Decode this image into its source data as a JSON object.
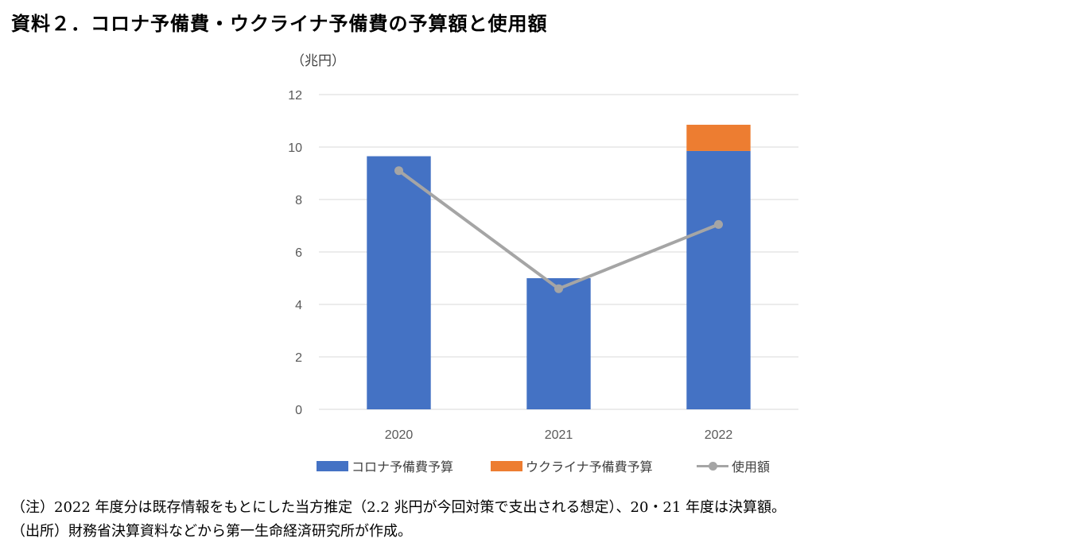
{
  "title": "資料２．コロナ予備費・ウクライナ予備費の予算額と使用額",
  "unit_label": "（兆円）",
  "colors": {
    "corona": "#4472c4",
    "ukraine": "#ed7d31",
    "usage": "#a5a5a5",
    "grid": "#d9d9d9",
    "axis_text": "#595959"
  },
  "chart_data": {
    "type": "bar",
    "stacked": true,
    "title": "",
    "xlabel": "",
    "ylabel": "（兆円）",
    "ylim": [
      0,
      12
    ],
    "yticks": [
      0,
      2,
      4,
      6,
      8,
      10,
      12
    ],
    "categories": [
      "2020",
      "2021",
      "2022"
    ],
    "series": [
      {
        "name": "コロナ予備費予算",
        "type": "bar",
        "color": "#4472c4",
        "values": [
          9.65,
          5.0,
          9.85
        ]
      },
      {
        "name": "ウクライナ予備費予算",
        "type": "bar",
        "color": "#ed7d31",
        "values": [
          0,
          0,
          1.0
        ]
      },
      {
        "name": "使用額",
        "type": "line",
        "color": "#a5a5a5",
        "values": [
          9.1,
          4.6,
          7.05
        ]
      }
    ],
    "grid": true,
    "legend": "bottom"
  },
  "notes": [
    "（注）2022 年度分は既存情報をもとにした当方推定（2.2 兆円が今回対策で支出される想定）、20・21 年度は決算額。",
    "（出所）財務省決算資料などから第一生命経済研究所が作成。"
  ]
}
